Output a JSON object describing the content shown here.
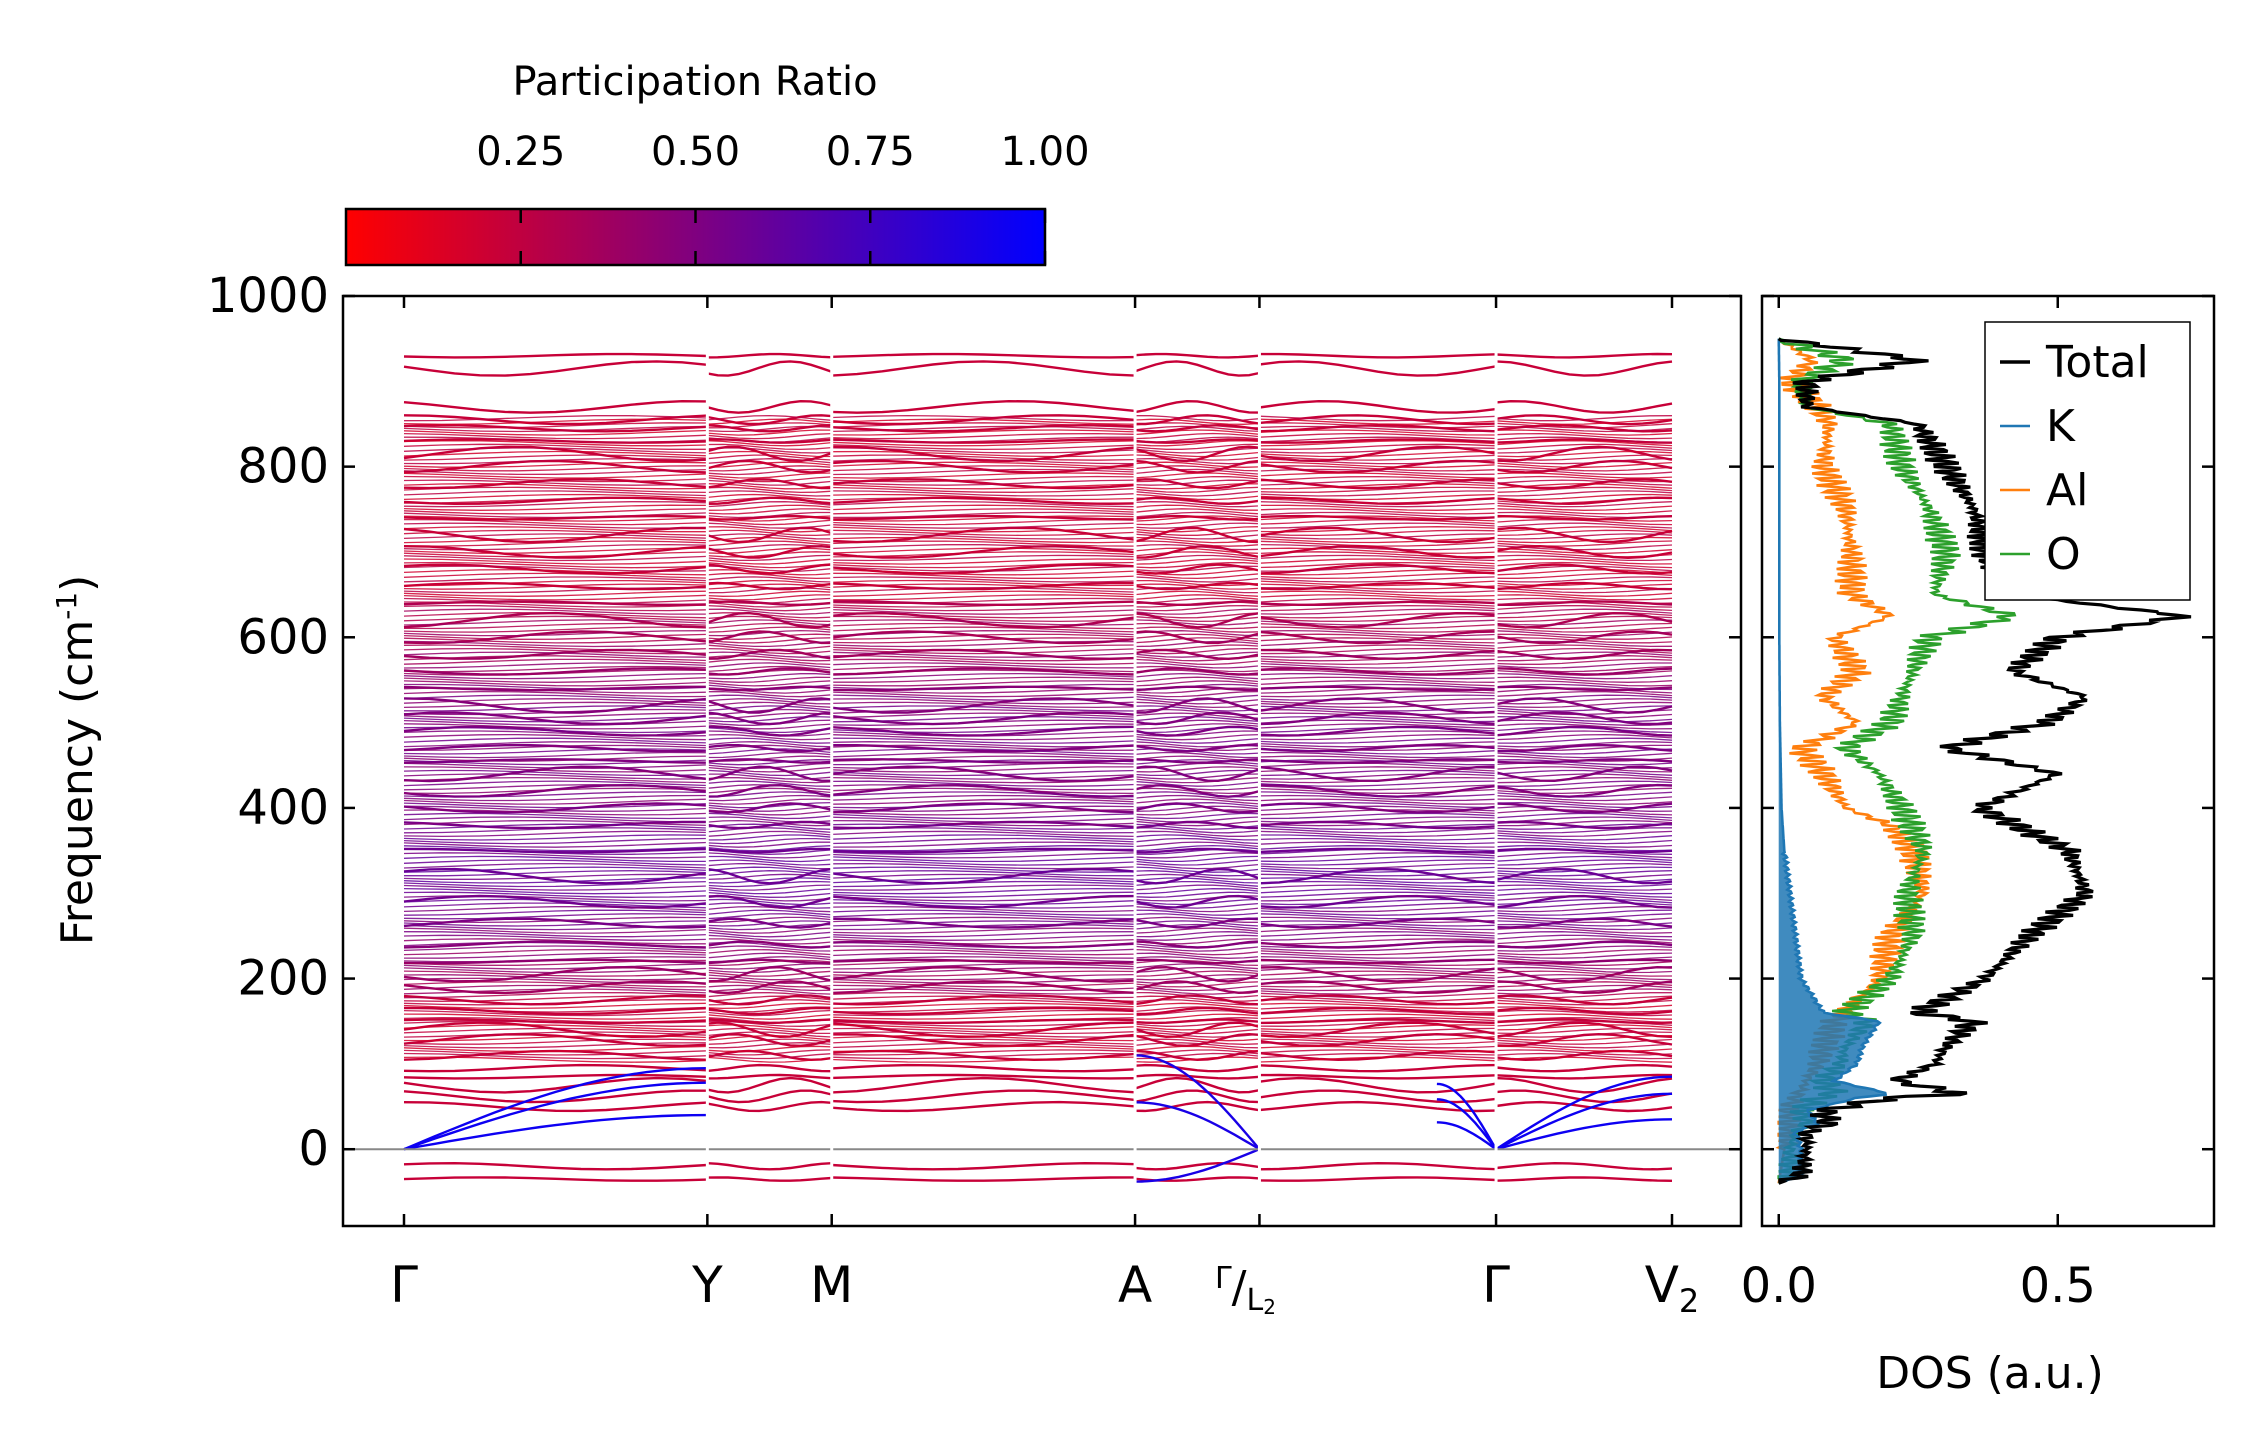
{
  "chart_data": [
    {
      "type": "line",
      "subtype": "phonon-band-structure",
      "ylabel": "Frequency (cm",
      "ylabel_sup": "-1",
      "ylabel_close": ")",
      "ylim": [
        -90,
        1000
      ],
      "yticks": [
        0,
        200,
        400,
        600,
        800,
        1000
      ],
      "xticks": [
        {
          "label": "Γ",
          "pos": 0
        },
        {
          "label": "Y",
          "pos": 1
        },
        {
          "label": "M",
          "pos": 1.41
        },
        {
          "label": "A",
          "pos": 2.41
        },
        {
          "label": "Γ/L2",
          "pos": 2.82,
          "main": "Γ",
          "sep": "/",
          "sub_main": "L",
          "sub_index": "2"
        },
        {
          "label": "Γ",
          "pos": 3.6
        },
        {
          "label": "V2",
          "pos": 4.18,
          "main": "V",
          "sub": "2"
        }
      ],
      "xrange": [
        0,
        4.18
      ],
      "reference_line": 0,
      "colorbar": {
        "label": "Participation Ratio",
        "range": [
          0,
          1
        ],
        "ticks": [
          0.25,
          0.5,
          0.75,
          1.0
        ],
        "tick_labels": [
          "0.25",
          "0.50",
          "0.75",
          "1.00"
        ],
        "colors": [
          "#ff0000",
          "#0000ff"
        ]
      },
      "flat_bands": [
        -35,
        -20,
        50,
        62,
        75,
        85,
        95,
        110,
        128,
        140,
        150,
        162,
        175,
        190,
        205,
        220,
        240,
        265,
        290,
        320,
        350,
        380,
        400,
        420,
        440,
        455,
        470,
        490,
        505,
        520,
        540,
        560,
        580,
        600,
        620,
        640,
        660,
        680,
        700,
        720,
        740,
        760,
        780,
        800,
        815,
        830,
        845,
        855,
        870,
        915,
        930
      ],
      "acoustic_branches": [
        {
          "segment": "Γ-Y",
          "end_values": [
            40,
            78,
            95
          ]
        },
        {
          "segment": "A-Γ",
          "start_values": [
            -38,
            55,
            110
          ]
        },
        {
          "segment": "Γ-V2",
          "end_values": [
            35,
            65,
            85
          ]
        }
      ]
    },
    {
      "type": "line",
      "subtype": "density-of-states",
      "xlabel": "DOS (a.u.)",
      "xlim": [
        -0.03,
        0.78
      ],
      "xticks": [
        0.0,
        0.5
      ],
      "xtick_labels": [
        "0.0",
        "0.5"
      ],
      "ylim": [
        -90,
        1000
      ],
      "legend": {
        "position": "top-right"
      },
      "series": [
        {
          "name": "Total",
          "color": "#000000",
          "freq": [
            -40,
            -30,
            0,
            20,
            30,
            45,
            60,
            65,
            80,
            100,
            120,
            150,
            160,
            200,
            250,
            300,
            350,
            400,
            440,
            470,
            500,
            530,
            560,
            600,
            625,
            650,
            700,
            750,
            800,
            850,
            870,
            900,
            925,
            950
          ],
          "values": [
            0,
            0.04,
            0.05,
            0.05,
            0.09,
            0.08,
            0.2,
            0.33,
            0.21,
            0.28,
            0.3,
            0.35,
            0.25,
            0.37,
            0.45,
            0.55,
            0.52,
            0.36,
            0.5,
            0.3,
            0.48,
            0.55,
            0.42,
            0.5,
            0.73,
            0.42,
            0.37,
            0.35,
            0.3,
            0.25,
            0.05,
            0.05,
            0.25,
            0
          ]
        },
        {
          "name": "K",
          "color": "#1f77b4",
          "freq": [
            -40,
            -30,
            0,
            20,
            30,
            45,
            60,
            65,
            80,
            100,
            120,
            150,
            160,
            200,
            250,
            300,
            350,
            400,
            500,
            600,
            700,
            800,
            900,
            950
          ],
          "values": [
            0,
            0.04,
            0.04,
            0.03,
            0.07,
            0.05,
            0.14,
            0.2,
            0.1,
            0.14,
            0.15,
            0.18,
            0.08,
            0.04,
            0.03,
            0.02,
            0.01,
            0.005,
            0.002,
            0.001,
            0.001,
            0.001,
            0.001,
            0
          ]
        },
        {
          "name": "Al",
          "color": "#ff7f0e",
          "freq": [
            -40,
            0,
            50,
            80,
            100,
            150,
            200,
            250,
            300,
            350,
            380,
            400,
            440,
            470,
            500,
            530,
            560,
            600,
            625,
            650,
            700,
            750,
            800,
            850,
            870,
            900,
            925,
            950
          ],
          "values": [
            0,
            0.01,
            0.02,
            0.05,
            0.07,
            0.1,
            0.18,
            0.2,
            0.26,
            0.24,
            0.2,
            0.12,
            0.08,
            0.04,
            0.14,
            0.08,
            0.14,
            0.1,
            0.2,
            0.13,
            0.13,
            0.12,
            0.08,
            0.09,
            0.07,
            0.02,
            0.06,
            0
          ]
        },
        {
          "name": "O",
          "color": "#2ca02c",
          "freq": [
            -40,
            -30,
            0,
            20,
            30,
            45,
            60,
            65,
            80,
            100,
            120,
            150,
            160,
            200,
            250,
            300,
            350,
            400,
            440,
            470,
            500,
            530,
            560,
            600,
            625,
            650,
            700,
            750,
            800,
            850,
            870,
            900,
            925,
            950
          ],
          "values": [
            0,
            0.02,
            0.02,
            0.03,
            0.05,
            0.04,
            0.07,
            0.1,
            0.08,
            0.11,
            0.12,
            0.16,
            0.12,
            0.2,
            0.24,
            0.23,
            0.26,
            0.22,
            0.18,
            0.12,
            0.2,
            0.22,
            0.24,
            0.27,
            0.42,
            0.28,
            0.3,
            0.27,
            0.22,
            0.2,
            0.05,
            0.04,
            0.12,
            0
          ]
        }
      ]
    }
  ]
}
